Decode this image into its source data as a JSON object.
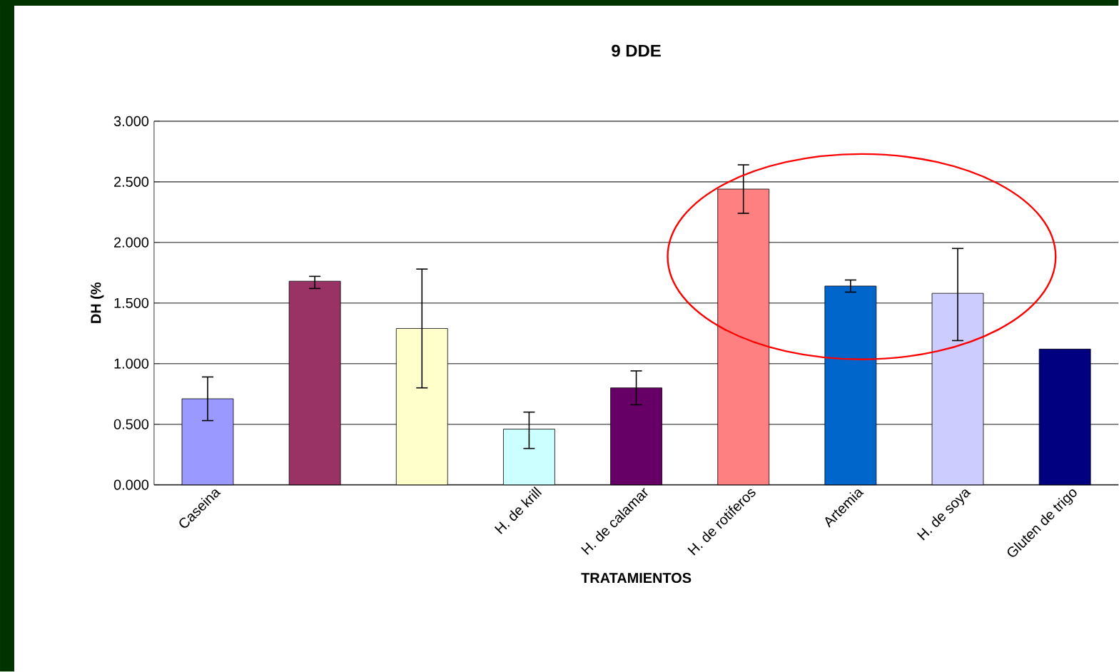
{
  "chart_data": {
    "type": "bar",
    "title": "9 DDE",
    "xlabel": "TRATAMIENTOS",
    "ylabel": "DH (%",
    "categories": [
      "Caseina",
      null,
      null,
      "H. de krill",
      "H. de calamar",
      "H. de rotiferos",
      "Artemia",
      "H. de soya",
      "Gluten de trigo"
    ],
    "values": [
      0.71,
      1.68,
      1.29,
      0.46,
      0.8,
      2.44,
      1.64,
      1.58,
      1.12
    ],
    "errors": [
      [
        0.53,
        0.89
      ],
      [
        1.62,
        1.72
      ],
      [
        0.8,
        1.78
      ],
      [
        0.3,
        0.6
      ],
      [
        0.66,
        0.94
      ],
      [
        2.24,
        2.64
      ],
      [
        1.59,
        1.69
      ],
      [
        1.19,
        1.95
      ],
      null
    ],
    "colors": [
      "#9999ff",
      "#993366",
      "#ffffcc",
      "#ccffff",
      "#660066",
      "#ff8080",
      "#0066cc",
      "#ccccff",
      "#000080"
    ],
    "ylim": [
      0,
      3
    ],
    "yticks": [
      {
        "value": 0,
        "label": "0.000"
      },
      {
        "value": 0.5,
        "label": "0.500"
      },
      {
        "value": 1,
        "label": "1.000"
      },
      {
        "value": 1.5,
        "label": "1.500"
      },
      {
        "value": 2,
        "label": "2.000"
      },
      {
        "value": 2.5,
        "label": "2.500"
      },
      {
        "value": 3,
        "label": "3.000"
      }
    ],
    "grid": "y"
  }
}
